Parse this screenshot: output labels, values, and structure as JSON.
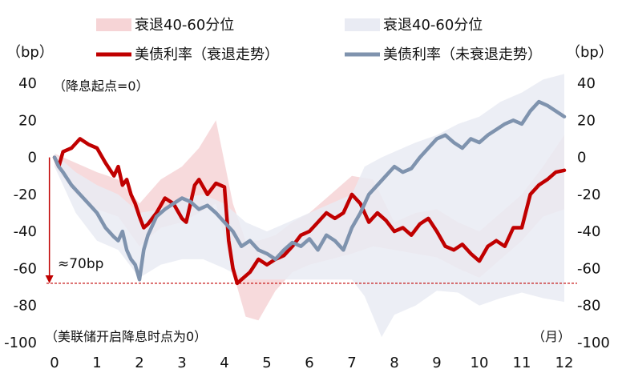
{
  "chart_data": {
    "type": "line",
    "legend": {
      "placement": "top",
      "items": [
        {
          "label": "衰退40-60分位",
          "kind": "band",
          "color": "#f6d4d6"
        },
        {
          "label": "衰退40-60分位",
          "kind": "band",
          "color": "#e9ebf3"
        },
        {
          "label": "美债利率（衰退走势）",
          "kind": "line",
          "color": "#c00000"
        },
        {
          "label": "美债利率（未衰退走势）",
          "kind": "line",
          "color": "#7f93ae"
        }
      ]
    },
    "left_unit": "（bp）",
    "right_unit": "（bp）",
    "xlabel": "（美联储开启降息时点为0）",
    "xunit": "（月）",
    "subtitle": "（降息起点=0）",
    "xlim": [
      0,
      12
    ],
    "ylim": [
      -100,
      40
    ],
    "x_ticks": [
      0,
      1,
      2,
      3,
      4,
      5,
      6,
      7,
      8,
      9,
      10,
      11,
      12
    ],
    "x_tick_labels": [
      "0",
      "1",
      "2",
      "3",
      "4",
      "5",
      "6",
      "7",
      "8",
      "9",
      "10",
      "11",
      "12"
    ],
    "y_ticks": [
      40,
      20,
      0,
      -20,
      -40,
      -60,
      -80,
      -100
    ],
    "y_tick_labels": [
      "40",
      "20",
      "0",
      "-20",
      "-40",
      "-60",
      "-80",
      "-100"
    ],
    "grid": false,
    "annotation": {
      "text": "≈70bp",
      "from": 0,
      "to": -68,
      "x": -0.12,
      "color": "#c00000"
    },
    "reference_line": {
      "y": -68,
      "style": "dashed",
      "color": "#c00000"
    },
    "bands": [
      {
        "name": "衰退40-60分位",
        "color": "#f6d4d6",
        "x": [
          0,
          0.5,
          1,
          1.5,
          2,
          2.5,
          3,
          3.4,
          3.8,
          4.2,
          4.5,
          4.8,
          5.2,
          5.6,
          6,
          6.5,
          7,
          7.5,
          8,
          8.5,
          9,
          9.5,
          10,
          10.5,
          11,
          11.5,
          12
        ],
        "upper": [
          2,
          -3,
          -8,
          -12,
          -25,
          -12,
          -5,
          5,
          20,
          -25,
          -45,
          -45,
          -42,
          -35,
          -30,
          -20,
          -10,
          -12,
          -35,
          -30,
          -28,
          -35,
          -40,
          -30,
          -20,
          -5,
          12
        ],
        "lower": [
          -5,
          -20,
          -28,
          -32,
          -48,
          -38,
          -35,
          -30,
          -25,
          -62,
          -86,
          -88,
          -72,
          -62,
          -58,
          -55,
          -52,
          -48,
          -50,
          -52,
          -54,
          -60,
          -65,
          -55,
          -45,
          -32,
          -28
        ]
      },
      {
        "name": "衰退40-60分位",
        "color": "#e9ebf3",
        "x": [
          0,
          0.5,
          1,
          1.5,
          2,
          2.5,
          3,
          3.5,
          4,
          4.5,
          5,
          5.5,
          6,
          6.5,
          7,
          7.3,
          7.7,
          8,
          8.5,
          9,
          9.5,
          10,
          10.5,
          11,
          11.5,
          12
        ],
        "upper": [
          2,
          -8,
          -15,
          -20,
          -30,
          -28,
          -22,
          -20,
          -25,
          -35,
          -40,
          -35,
          -30,
          -25,
          -20,
          -5,
          0,
          3,
          8,
          12,
          18,
          22,
          30,
          35,
          42,
          45
        ],
        "lower": [
          -5,
          -30,
          -45,
          -50,
          -65,
          -58,
          -55,
          -55,
          -60,
          -66,
          -66,
          -66,
          -66,
          -66,
          -66,
          -75,
          -97,
          -85,
          -80,
          -72,
          -73,
          -80,
          -76,
          -73,
          -76,
          -78
        ]
      }
    ],
    "series": [
      {
        "name": "美债利率（衰退走势）",
        "color": "#c00000",
        "x": [
          0,
          0.1,
          0.2,
          0.4,
          0.6,
          0.8,
          1.0,
          1.2,
          1.4,
          1.5,
          1.6,
          1.7,
          1.8,
          1.9,
          2.0,
          2.1,
          2.2,
          2.4,
          2.6,
          2.8,
          3.0,
          3.1,
          3.2,
          3.3,
          3.4,
          3.6,
          3.8,
          4.0,
          4.1,
          4.2,
          4.3,
          4.4,
          4.6,
          4.8,
          5.0,
          5.2,
          5.4,
          5.6,
          5.8,
          6.0,
          6.2,
          6.4,
          6.6,
          6.8,
          7.0,
          7.2,
          7.4,
          7.6,
          7.8,
          8.0,
          8.2,
          8.4,
          8.6,
          8.8,
          9.0,
          9.2,
          9.4,
          9.6,
          9.8,
          10.0,
          10.2,
          10.4,
          10.6,
          10.8,
          11.0,
          11.2,
          11.4,
          11.6,
          11.8,
          12.0
        ],
        "y": [
          0,
          -5,
          3,
          5,
          10,
          7,
          5,
          -3,
          -10,
          -5,
          -15,
          -12,
          -20,
          -25,
          -32,
          -38,
          -36,
          -30,
          -22,
          -25,
          -33,
          -35,
          -25,
          -15,
          -12,
          -20,
          -14,
          -16,
          -45,
          -60,
          -68,
          -66,
          -62,
          -55,
          -58,
          -55,
          -53,
          -48,
          -42,
          -40,
          -35,
          -30,
          -33,
          -30,
          -20,
          -25,
          -35,
          -30,
          -34,
          -40,
          -38,
          -42,
          -36,
          -33,
          -40,
          -48,
          -50,
          -47,
          -52,
          -56,
          -48,
          -45,
          -48,
          -38,
          -38,
          -20,
          -15,
          -12,
          -8,
          -7
        ]
      },
      {
        "name": "美债利率（未衰退走势）",
        "color": "#7f93ae",
        "x": [
          0,
          0.1,
          0.2,
          0.4,
          0.6,
          0.8,
          1.0,
          1.2,
          1.4,
          1.5,
          1.6,
          1.7,
          1.8,
          1.9,
          2.0,
          2.1,
          2.2,
          2.4,
          2.6,
          2.8,
          3.0,
          3.2,
          3.4,
          3.6,
          3.8,
          4.0,
          4.2,
          4.4,
          4.6,
          4.8,
          5.0,
          5.2,
          5.4,
          5.6,
          5.8,
          6.0,
          6.2,
          6.4,
          6.6,
          6.8,
          7.0,
          7.2,
          7.4,
          7.6,
          7.8,
          8.0,
          8.2,
          8.4,
          8.6,
          8.8,
          9.0,
          9.2,
          9.4,
          9.6,
          9.8,
          10.0,
          10.2,
          10.4,
          10.6,
          10.8,
          11.0,
          11.2,
          11.4,
          11.6,
          11.8,
          12.0
        ],
        "y": [
          0,
          -5,
          -8,
          -15,
          -20,
          -25,
          -30,
          -38,
          -43,
          -45,
          -40,
          -50,
          -55,
          -58,
          -66,
          -50,
          -42,
          -32,
          -28,
          -25,
          -22,
          -24,
          -28,
          -26,
          -30,
          -35,
          -40,
          -48,
          -45,
          -50,
          -52,
          -55,
          -50,
          -46,
          -48,
          -44,
          -50,
          -42,
          -45,
          -50,
          -38,
          -30,
          -20,
          -15,
          -10,
          -5,
          -8,
          -6,
          0,
          5,
          10,
          12,
          8,
          5,
          10,
          8,
          12,
          15,
          18,
          20,
          18,
          25,
          30,
          28,
          25,
          22
        ]
      }
    ]
  }
}
